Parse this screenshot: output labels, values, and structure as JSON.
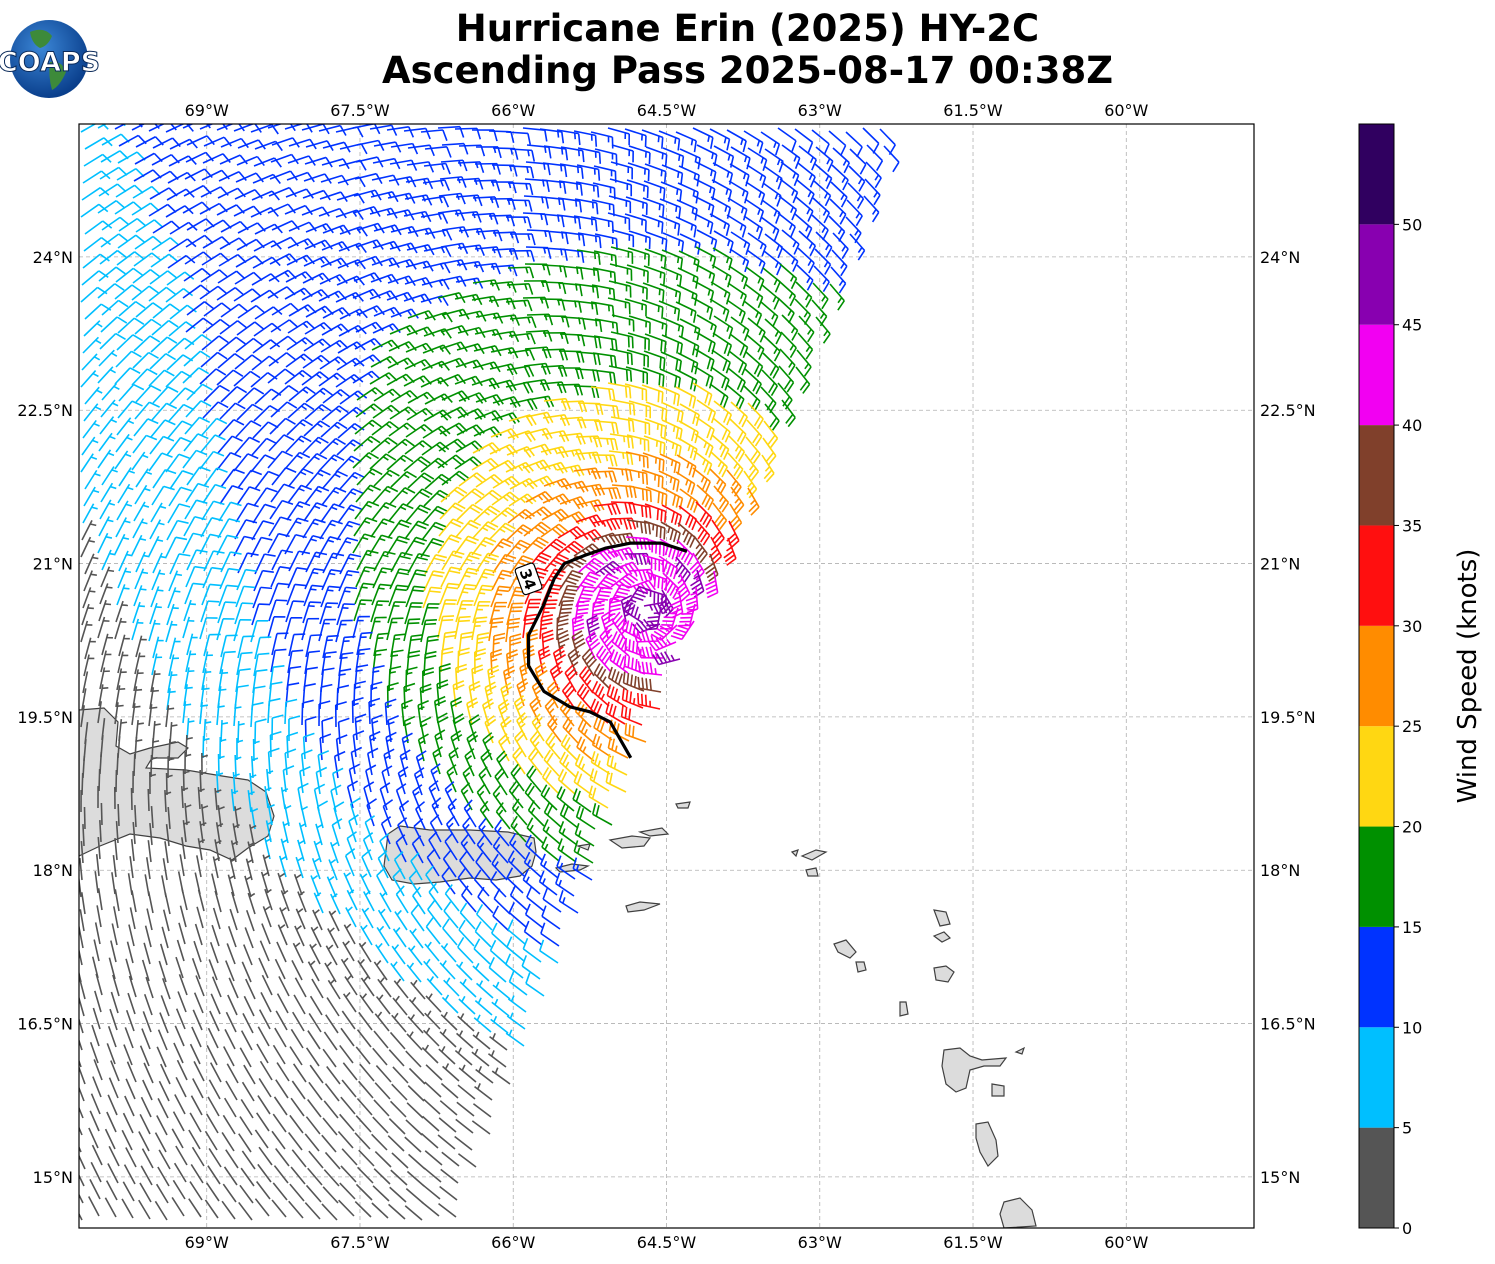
{
  "title_line1": "Hurricane Erin (2025) HY-2C",
  "title_line2": "Ascending Pass 2025-08-17 00:38Z",
  "logo_text": "COAPS",
  "map": {
    "lon_range": [
      -70.25,
      -58.75
    ],
    "lat_range": [
      14.5,
      25.3
    ],
    "lon_ticks": [
      {
        "value": -69,
        "label": "69°W"
      },
      {
        "value": -67.5,
        "label": "67.5°W"
      },
      {
        "value": -66,
        "label": "66°W"
      },
      {
        "value": -64.5,
        "label": "64.5°W"
      },
      {
        "value": -63,
        "label": "63°W"
      },
      {
        "value": -61.5,
        "label": "61.5°W"
      },
      {
        "value": -60,
        "label": "60°W"
      }
    ],
    "lat_ticks": [
      {
        "value": 24,
        "label": "24°N"
      },
      {
        "value": 22.5,
        "label": "22.5°N"
      },
      {
        "value": 21,
        "label": "21°N"
      },
      {
        "value": 19.5,
        "label": "19.5°N"
      },
      {
        "value": 18,
        "label": "18°N"
      },
      {
        "value": 16.5,
        "label": "16.5°N"
      },
      {
        "value": 15,
        "label": "15°N"
      }
    ],
    "storm_center": {
      "lon": -64.7,
      "lat": 20.55
    },
    "contour_label": "34",
    "contour_34kt": [
      [
        -64.3,
        21.12
      ],
      [
        -64.55,
        21.2
      ],
      [
        -64.85,
        21.2
      ],
      [
        -65.1,
        21.15
      ],
      [
        -65.3,
        21.08
      ],
      [
        -65.5,
        21.0
      ],
      [
        -65.6,
        20.85
      ],
      [
        -65.7,
        20.6
      ],
      [
        -65.85,
        20.3
      ],
      [
        -65.85,
        20.0
      ],
      [
        -65.7,
        19.75
      ],
      [
        -65.45,
        19.6
      ],
      [
        -65.25,
        19.55
      ],
      [
        -65.05,
        19.45
      ],
      [
        -64.85,
        19.1
      ]
    ]
  },
  "colorbar": {
    "label": "Wind Speed (knots)",
    "bins": [
      {
        "min": 0,
        "max": 5,
        "color": "#555555"
      },
      {
        "min": 5,
        "max": 10,
        "color": "#00bfff"
      },
      {
        "min": 10,
        "max": 15,
        "color": "#0033ff"
      },
      {
        "min": 15,
        "max": 20,
        "color": "#009000"
      },
      {
        "min": 20,
        "max": 25,
        "color": "#ffd712"
      },
      {
        "min": 25,
        "max": 30,
        "color": "#ff8c00"
      },
      {
        "min": 30,
        "max": 35,
        "color": "#ff0f0f"
      },
      {
        "min": 35,
        "max": 40,
        "color": "#80402b"
      },
      {
        "min": 40,
        "max": 45,
        "color": "#f200f2"
      },
      {
        "min": 45,
        "max": 50,
        "color": "#8800b0"
      },
      {
        "min": 50,
        "max": 55,
        "color": "#300060"
      }
    ],
    "ticks": [
      "0",
      "5",
      "10",
      "15",
      "20",
      "25",
      "30",
      "35",
      "40",
      "45",
      "50"
    ]
  }
}
